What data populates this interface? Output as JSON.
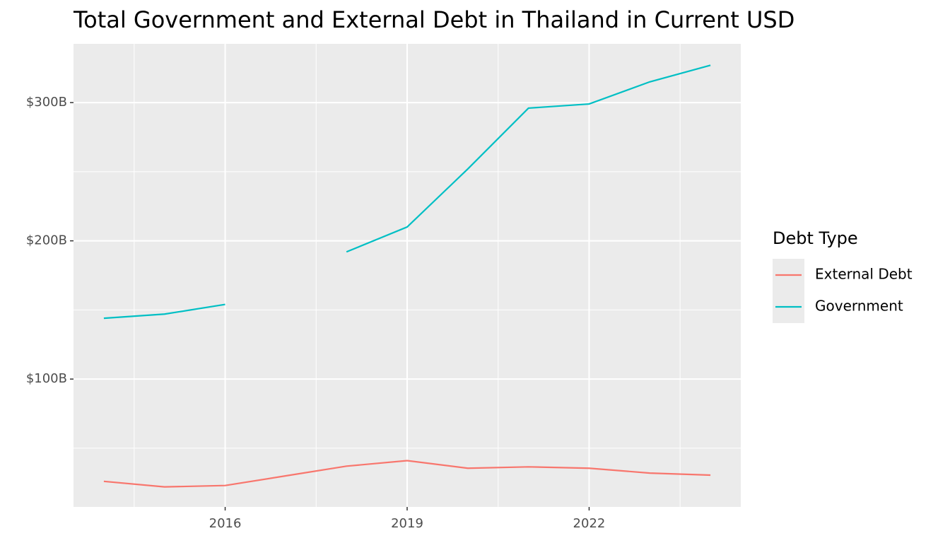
{
  "chart_data": {
    "type": "line",
    "title": "Total Government and External Debt in Thailand in Current USD",
    "x": [
      2014,
      2015,
      2016,
      2017,
      2018,
      2019,
      2020,
      2021,
      2022,
      2023,
      2024
    ],
    "series": [
      {
        "name": "External Debt",
        "color": "#F8766D",
        "values": [
          26,
          22,
          23,
          30,
          37,
          41,
          35.5,
          36.5,
          35.5,
          32,
          30.5
        ]
      },
      {
        "name": "Government",
        "color": "#00BFC4",
        "values": [
          144,
          147,
          154,
          null,
          192,
          210,
          252,
          296,
          299,
          315,
          327
        ]
      }
    ],
    "xlim": [
      2013.5,
      2024.5
    ],
    "xticks": [
      2016,
      2019,
      2022
    ],
    "x_minor_ticks": [
      2014.5,
      2017.5,
      2020.5,
      2023.5
    ],
    "ylim": [
      7.5,
      342.5
    ],
    "yticks": [
      {
        "value": 100,
        "label": "$100B"
      },
      {
        "value": 200,
        "label": "$200B"
      },
      {
        "value": 300,
        "label": "$300B"
      }
    ],
    "y_minor_ticks": [
      50,
      150,
      250
    ],
    "legend_title": "Debt Type",
    "legend": "right",
    "grid": true
  }
}
